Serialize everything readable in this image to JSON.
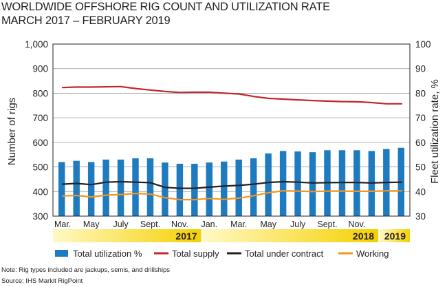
{
  "title": "WORLDWIDE OFFSHORE RIG COUNT AND UTILIZATION RATE",
  "subtitle": "MARCH 2017 – FEBRUARY 2019",
  "note": "Note: Rig types included are jackups, semis, and drillships",
  "source": "Source: IHS Markit RigPoint",
  "colors": {
    "bar": "#1f7bbf",
    "supply": "#c1272d",
    "contract": "#231f20",
    "working": "#f7941d",
    "grid": "#9a9a9a",
    "band_light": "#fff9c4",
    "band_dark": "#f5d000"
  },
  "chart_data": {
    "type": "bar+line",
    "title": "WORLDWIDE OFFSHORE RIG COUNT AND UTILIZATION RATE",
    "subtitle": "MARCH 2017 – FEBRUARY 2019",
    "ylabel": "Number of rigs",
    "y2label": "Fleet utilization rate, %",
    "ylim": [
      300,
      1000
    ],
    "y2lim": [
      30,
      100
    ],
    "yticks": [
      "300",
      "400",
      "500",
      "600",
      "700",
      "800",
      "900",
      "1,000"
    ],
    "y2ticks": [
      "30",
      "40",
      "50",
      "60",
      "70",
      "80",
      "90",
      "100"
    ],
    "grid": true,
    "month_labels": [
      {
        "label": "Mar.",
        "index": 0
      },
      {
        "label": "May",
        "index": 2
      },
      {
        "label": "July",
        "index": 4
      },
      {
        "label": "Sept.",
        "index": 6
      },
      {
        "label": "Nov.",
        "index": 8
      },
      {
        "label": "Jan.",
        "index": 10
      },
      {
        "label": "Mar.",
        "index": 12
      },
      {
        "label": "May",
        "index": 14
      },
      {
        "label": "July",
        "index": 16
      },
      {
        "label": "Sept.",
        "index": 18
      },
      {
        "label": "Nov.",
        "index": 20
      }
    ],
    "years": [
      {
        "label": "2017",
        "start": 0,
        "end": 9
      },
      {
        "label": "2018",
        "start": 10,
        "end": 21
      },
      {
        "label": "2019",
        "start": 22,
        "end": 23
      }
    ],
    "series": [
      {
        "name": "Total utilization %",
        "type": "bar",
        "axis": "right",
        "values": [
          52,
          52.5,
          52,
          53,
          53,
          53.5,
          53.5,
          51.8,
          51.3,
          51.3,
          51.8,
          52.2,
          53,
          53.5,
          55.5,
          56.5,
          56.3,
          56,
          56.8,
          56.8,
          56.8,
          56.5,
          57.3,
          57.8
        ]
      },
      {
        "name": "Total supply",
        "type": "line",
        "axis": "left",
        "values": [
          823,
          825,
          825,
          826,
          827,
          819,
          813,
          807,
          803,
          804,
          804,
          800,
          797,
          787,
          779,
          776,
          773,
          770,
          768,
          766,
          765,
          762,
          757,
          757
        ]
      },
      {
        "name": "Total under contract",
        "type": "line",
        "axis": "left",
        "values": [
          430,
          433,
          428,
          438,
          440,
          438,
          436,
          417,
          413,
          413,
          418,
          422,
          425,
          430,
          437,
          440,
          438,
          435,
          436,
          437,
          437,
          435,
          437,
          438
        ]
      },
      {
        "name": "Working",
        "type": "line",
        "axis": "left",
        "values": [
          382,
          384,
          378,
          385,
          388,
          392,
          390,
          375,
          367,
          367,
          372,
          368,
          373,
          383,
          395,
          403,
          402,
          400,
          402,
          402,
          401,
          401,
          403,
          403
        ]
      }
    ]
  }
}
